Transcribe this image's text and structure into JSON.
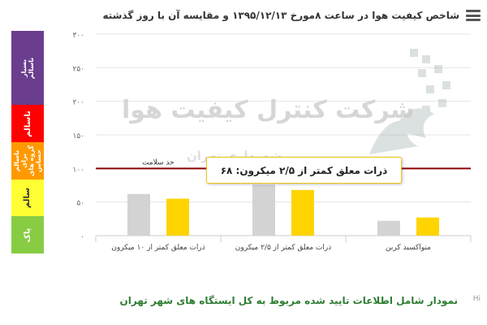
{
  "header": {
    "title": "شاخص کیفیت هوا در ساعت ۸مورخ ۱۳۹۵/۱۲/۱۳ و مقایسه آن با روز گذشته",
    "menu_icon": "hamburger-menu-icon"
  },
  "bands": [
    {
      "label": "بسیار ناسالم",
      "from": 200,
      "to": 300,
      "color": "#6a3d8f",
      "dark_text": false
    },
    {
      "label": "ناسالم",
      "from": 150,
      "to": 200,
      "color": "#ff0000",
      "dark_text": false
    },
    {
      "label": "ناسالم برای گروه های حساس",
      "from": 100,
      "to": 150,
      "color": "#ff9900",
      "dark_text": false
    },
    {
      "label": "سالم",
      "from": 50,
      "to": 100,
      "color": "#ffff33",
      "dark_text": true
    },
    {
      "label": "پاک",
      "from": 0,
      "to": 50,
      "color": "#88cc44",
      "dark_text": false
    }
  ],
  "watermark": {
    "line1": "شرکت کنترل کیفیت هوا",
    "line2": "شهرداری تهران"
  },
  "tooltip": {
    "text": "ذرات معلق کمتر از ۲/۵ میکرون: ۶۸"
  },
  "footer": {
    "note": "نمودار شامل اطلاعات تایید شده مربوط به کل ایستگاه های شهر تهران",
    "hi": "Hi"
  },
  "chart_data": {
    "type": "bar",
    "categories": [
      "ذرات معلق کمتر از ۱۰ میکرون",
      "ذرات معلق کمتر از ۲/۵ میکرون",
      "منواکسید کربن"
    ],
    "series": [
      {
        "color": "#d3d3d3",
        "values": [
          62,
          76,
          22
        ]
      },
      {
        "color": "#ffd400",
        "values": [
          55,
          68,
          27
        ]
      }
    ],
    "ylim": [
      0,
      300
    ],
    "yticks": [
      0,
      50,
      100,
      150,
      200,
      250,
      300
    ],
    "ytick_labels": [
      "۰",
      "۵۰",
      "۱۰۰",
      "۱۵۰",
      "۲۰۰",
      "۲۵۰",
      "۳۰۰"
    ],
    "threshold": {
      "value": 100,
      "label": "حد سلامت",
      "color": "#8b0000"
    },
    "grid": true
  }
}
